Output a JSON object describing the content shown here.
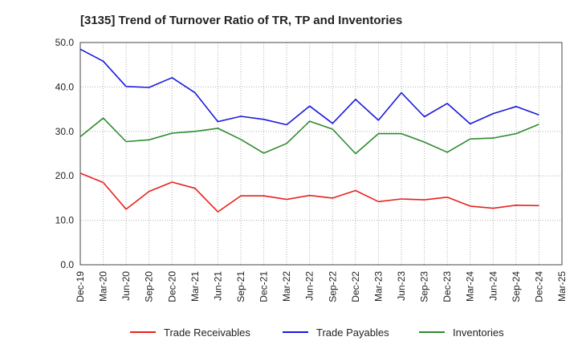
{
  "chart_data": {
    "type": "line",
    "title": "[3135]  Trend of Turnover Ratio of TR, TP and Inventories",
    "xlabel": "",
    "ylabel": "",
    "ylim": [
      0,
      50
    ],
    "y_ticks": [
      "0.0",
      "10.0",
      "20.0",
      "30.0",
      "40.0",
      "50.0"
    ],
    "x_tick_labels": [
      "Dec-19",
      "Mar-20",
      "Jun-20",
      "Sep-20",
      "Dec-20",
      "Mar-21",
      "Jun-21",
      "Sep-21",
      "Dec-21",
      "Mar-22",
      "Jun-22",
      "Sep-22",
      "Dec-22",
      "Mar-23",
      "Jun-23",
      "Sep-23",
      "Dec-23",
      "Mar-24",
      "Jun-24",
      "Sep-24",
      "Dec-24",
      "Mar-25"
    ],
    "x": [
      "Dec-19",
      "Mar-20",
      "Apr-20",
      "May-20",
      "Jun-20",
      "Jul-20",
      "Aug-20",
      "Sep-20",
      "Dec-20",
      "Mar-21",
      "Apr-21",
      "May-21",
      "Jun-21",
      "Jul-21",
      "Aug-21",
      "Sep-21",
      "Dec-21",
      "Mar-22",
      "Jun-22",
      "Sep-22",
      "Dec-22",
      "Mar-23",
      "Jun-23",
      "Sep-23",
      "Dec-23",
      "Mar-24",
      "Jun-24",
      "Sep-24",
      "Dec-24"
    ],
    "grid": true,
    "legend": "bottom",
    "series": [
      {
        "name": "Trade Receivables",
        "color": "#e8211c",
        "values": [
          20.6,
          18.5,
          null,
          null,
          12.5,
          null,
          null,
          16.5,
          18.6,
          17.2,
          null,
          null,
          11.9,
          null,
          null,
          15.5,
          15.5,
          14.7,
          15.6,
          15.0,
          16.7,
          14.2,
          14.8,
          14.6,
          15.2,
          13.2,
          12.7,
          13.4,
          13.3
        ]
      },
      {
        "name": "Trade Payables",
        "color": "#1a1adb",
        "values": [
          48.5,
          45.8,
          null,
          null,
          40.1,
          null,
          null,
          39.9,
          42.1,
          38.7,
          null,
          null,
          32.2,
          null,
          null,
          33.4,
          32.7,
          31.5,
          35.7,
          31.8,
          37.2,
          32.5,
          38.7,
          33.3,
          36.3,
          31.7,
          34.0,
          35.6,
          33.7
        ]
      },
      {
        "name": "Inventories",
        "color": "#2e8b2e",
        "values": [
          28.8,
          33.0,
          null,
          null,
          27.7,
          null,
          null,
          28.1,
          29.6,
          30.0,
          null,
          null,
          30.7,
          null,
          null,
          28.2,
          25.1,
          27.3,
          32.3,
          30.5,
          25.0,
          29.5,
          29.5,
          27.6,
          25.3,
          28.3,
          28.5,
          29.5,
          31.6
        ]
      }
    ]
  }
}
